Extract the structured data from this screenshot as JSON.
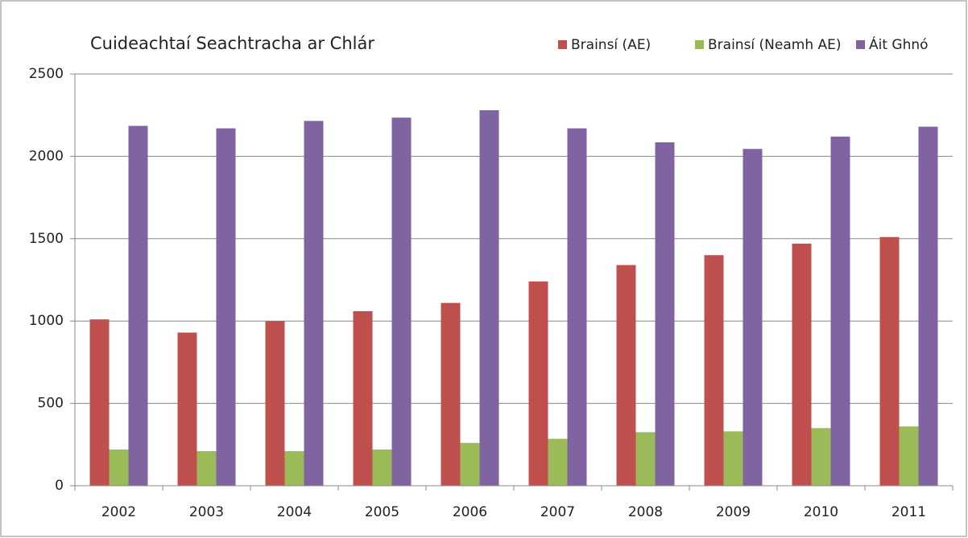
{
  "chart_data": {
    "type": "bar",
    "title": "Cuideachtaí Seachtracha  ar Chlár",
    "categories": [
      "2002",
      "2003",
      "2004",
      "2005",
      "2006",
      "2007",
      "2008",
      "2009",
      "2010",
      "2011"
    ],
    "series": [
      {
        "name": "Brainsí (AE)",
        "color": "#c0504d",
        "values": [
          1010,
          930,
          1000,
          1060,
          1110,
          1240,
          1340,
          1400,
          1470,
          1510
        ]
      },
      {
        "name": "Brainsí (Neamh AE)",
        "color": "#9bbb59",
        "values": [
          220,
          210,
          210,
          220,
          260,
          285,
          325,
          330,
          350,
          360
        ]
      },
      {
        "name": "Áit Ghnó",
        "color": "#8064a2",
        "values": [
          2185,
          2170,
          2215,
          2235,
          2280,
          2170,
          2085,
          2045,
          2120,
          2180
        ]
      }
    ],
    "ylim": [
      0,
      2500
    ],
    "yticks": [
      0,
      500,
      1000,
      1500,
      2000,
      2500
    ],
    "grid": true,
    "legend": "top-right"
  }
}
